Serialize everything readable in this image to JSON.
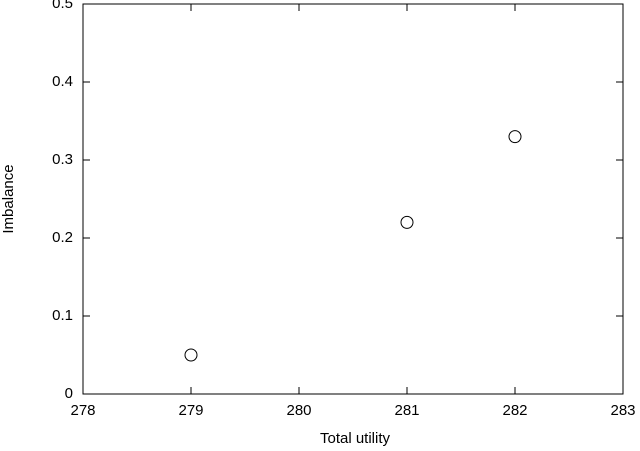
{
  "chart_data": {
    "type": "scatter",
    "x_label": "Total utility",
    "y_label": "Imbalance",
    "series": [
      {
        "color": "#000000",
        "x": [
          279,
          281,
          282
        ],
        "values": [
          0.05,
          0.22,
          0.33
        ]
      }
    ],
    "xlim": [
      278,
      283
    ],
    "xticks": [
      278,
      279,
      280,
      281,
      282,
      283
    ],
    "ylim": [
      0,
      0.5
    ],
    "yticks": [
      0,
      0.1,
      0.2,
      0.3,
      0.4,
      0.5
    ],
    "grid": false
  }
}
